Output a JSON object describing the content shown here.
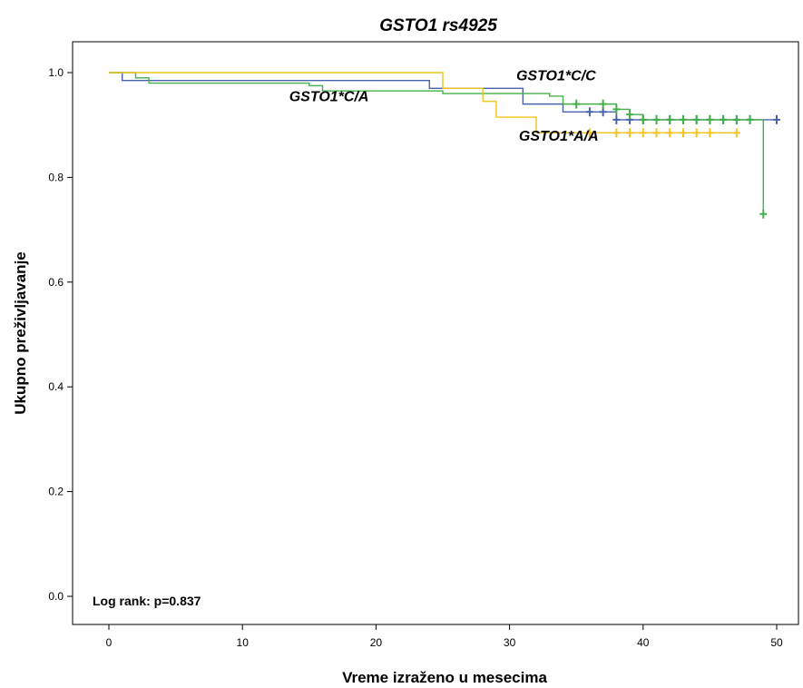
{
  "chart_data": {
    "type": "line",
    "subtype": "kaplan-meier-step",
    "title": "GSTO1 rs4925",
    "xlabel": "Vreme izraženo u mesecima",
    "ylabel": "Ukupno preživljavanje",
    "xlim": [
      0,
      50
    ],
    "ylim": [
      0,
      1
    ],
    "x_ticks": [
      "0",
      "10",
      "20",
      "30",
      "40",
      "50"
    ],
    "y_ticks": [
      "0.0",
      "0.2",
      "0.4",
      "0.6",
      "0.8",
      "1.0"
    ],
    "grid": false,
    "note": "Log rank: p=0.837",
    "series": [
      {
        "name": "GSTO1*C/C",
        "color": "#4a62ad",
        "steps": [
          [
            0,
            1.0
          ],
          [
            1,
            0.985
          ],
          [
            24,
            0.97
          ],
          [
            31,
            0.94
          ],
          [
            34,
            0.925
          ],
          [
            38,
            0.91
          ],
          [
            50,
            0.91
          ]
        ],
        "censored": [
          [
            36,
            0.925
          ],
          [
            37,
            0.925
          ],
          [
            38,
            0.91
          ],
          [
            39,
            0.91
          ],
          [
            40,
            0.91
          ],
          [
            41,
            0.91
          ],
          [
            42,
            0.91
          ],
          [
            43,
            0.91
          ],
          [
            44,
            0.91
          ],
          [
            45,
            0.91
          ],
          [
            46,
            0.91
          ],
          [
            47,
            0.91
          ],
          [
            48,
            0.91
          ],
          [
            50,
            0.91
          ]
        ]
      },
      {
        "name": "GSTO1*C/A",
        "color": "#44b04a",
        "steps": [
          [
            0,
            1.0
          ],
          [
            2,
            0.99
          ],
          [
            3,
            0.98
          ],
          [
            15,
            0.975
          ],
          [
            16,
            0.965
          ],
          [
            25,
            0.96
          ],
          [
            33,
            0.955
          ],
          [
            34,
            0.94
          ],
          [
            38,
            0.93
          ],
          [
            39,
            0.92
          ],
          [
            40,
            0.91
          ],
          [
            49,
            0.73
          ]
        ],
        "censored": [
          [
            35,
            0.94
          ],
          [
            37,
            0.94
          ],
          [
            38,
            0.93
          ],
          [
            39,
            0.92
          ],
          [
            40,
            0.91
          ],
          [
            41,
            0.91
          ],
          [
            42,
            0.91
          ],
          [
            43,
            0.91
          ],
          [
            44,
            0.91
          ],
          [
            45,
            0.91
          ],
          [
            46,
            0.91
          ],
          [
            47,
            0.91
          ],
          [
            48,
            0.91
          ],
          [
            49,
            0.73
          ]
        ]
      },
      {
        "name": "GSTO1*A/A",
        "color": "#f0c419",
        "steps": [
          [
            0,
            1.0
          ],
          [
            25,
            0.97
          ],
          [
            28,
            0.945
          ],
          [
            29,
            0.915
          ],
          [
            32,
            0.885
          ],
          [
            47,
            0.885
          ]
        ],
        "censored": [
          [
            36,
            0.885
          ],
          [
            38,
            0.885
          ],
          [
            39,
            0.885
          ],
          [
            40,
            0.885
          ],
          [
            41,
            0.885
          ],
          [
            42,
            0.885
          ],
          [
            43,
            0.885
          ],
          [
            44,
            0.885
          ],
          [
            45,
            0.885
          ],
          [
            47,
            0.885
          ]
        ]
      }
    ],
    "annotations": [
      {
        "text": "GSTO1*C/C",
        "x": 30.5,
        "y": 0.985
      },
      {
        "text": "GSTO1*C/A",
        "x": 13.5,
        "y": 0.945
      },
      {
        "text": "GSTO1*A/A",
        "x": 30.7,
        "y": 0.87
      }
    ]
  }
}
